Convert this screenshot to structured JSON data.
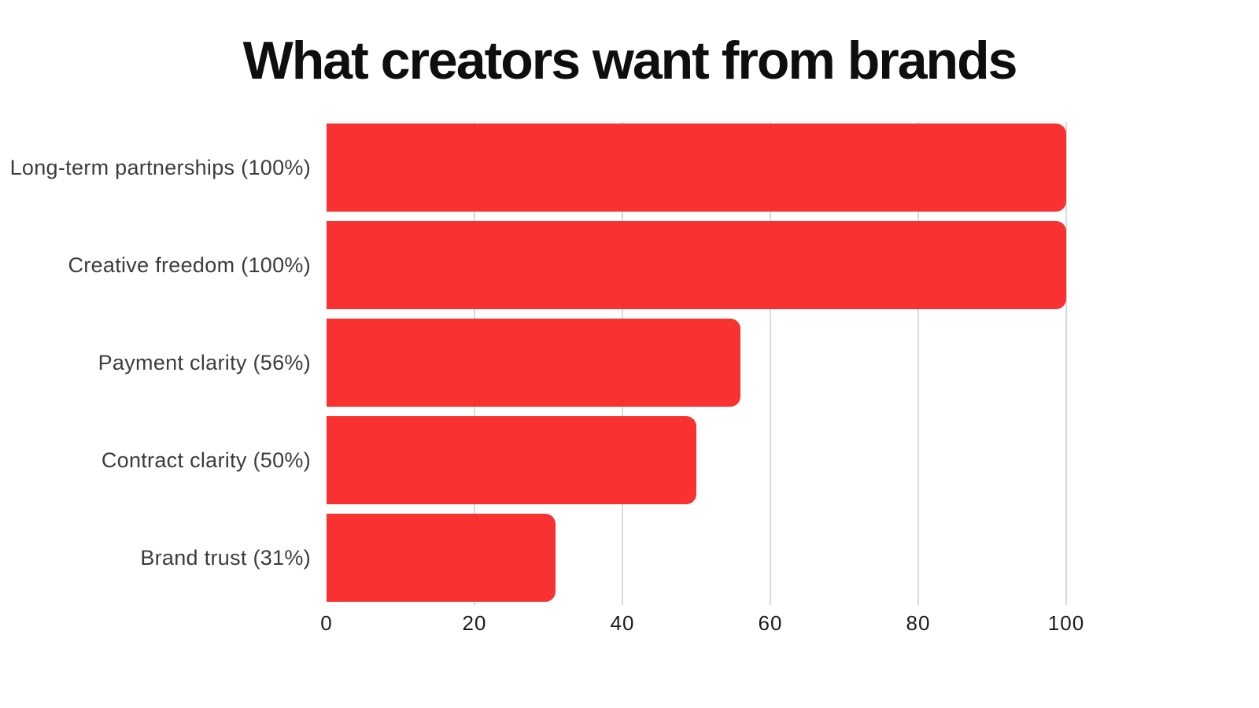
{
  "title": "What creators want from brands",
  "colors": {
    "bar": "#f93231",
    "grid": "#d9d9d9",
    "title": "#0e0e0e",
    "label": "#3c3c3c",
    "tick": "#1c1c1c",
    "background": "#ffffff"
  },
  "chart_data": {
    "type": "bar",
    "orientation": "horizontal",
    "title": "What creators want from brands",
    "categories": [
      "Long-term partnerships (100%)",
      "Creative freedom (100%)",
      "Payment clarity (56%)",
      "Contract clarity (50%)",
      "Brand trust (31%)"
    ],
    "values": [
      100,
      100,
      56,
      50,
      31
    ],
    "xlabel": "",
    "ylabel": "",
    "xlim": [
      0,
      100
    ],
    "xticks": [
      0,
      20,
      40,
      60,
      80,
      100
    ],
    "xtick_labels": [
      "0",
      "20",
      "40",
      "60",
      "80",
      "100"
    ],
    "grid": "vertical-gridlines-at-ticks-except-zero",
    "legend": "none",
    "bar_color": "#f93231"
  }
}
